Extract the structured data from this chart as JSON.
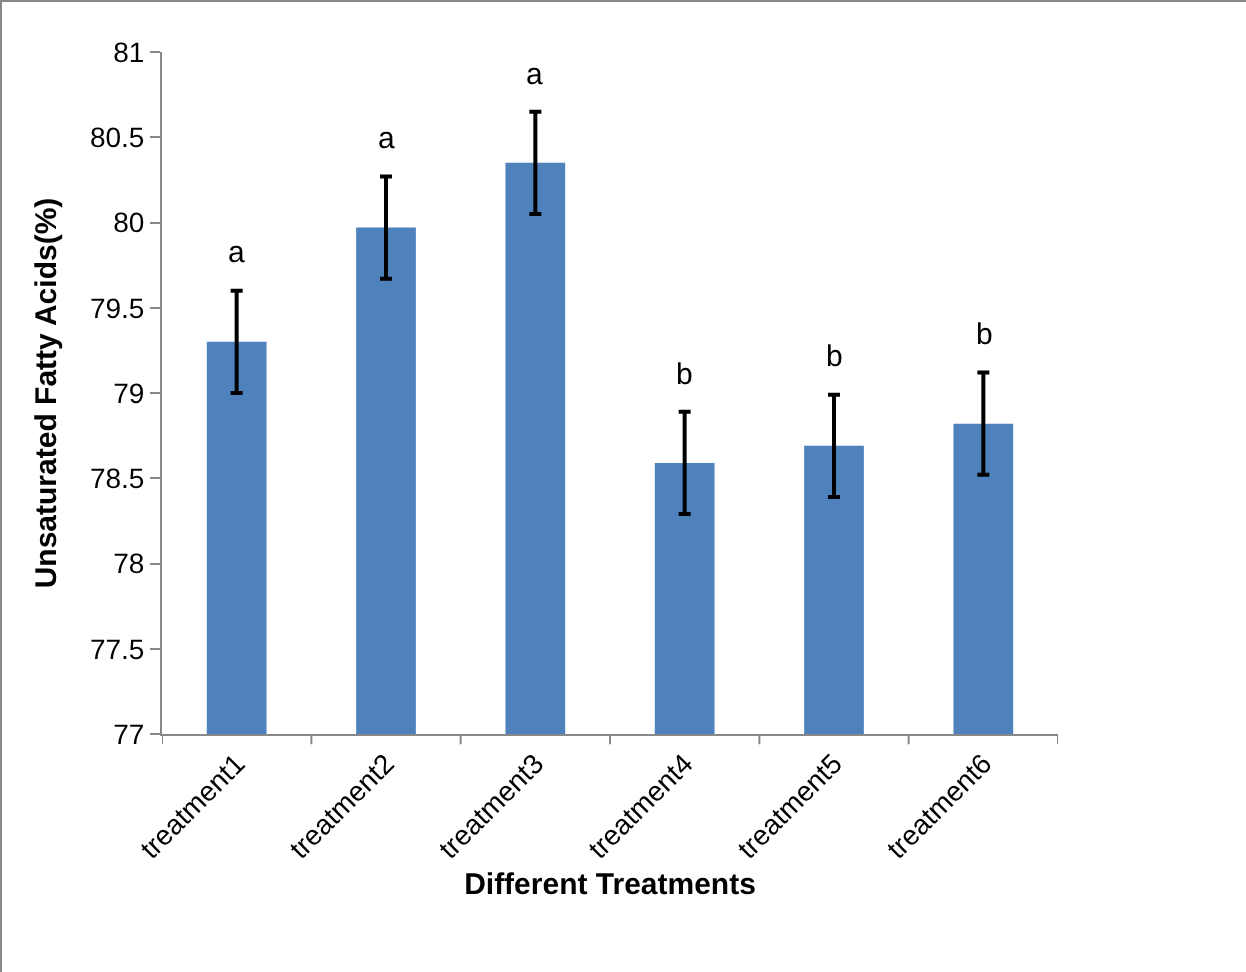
{
  "chart_data": {
    "type": "bar",
    "xlabel": "Different Treatments",
    "ylabel": "Unsaturated Fatty Acids(%)",
    "categories": [
      "treatment1",
      "treatment2",
      "treatment3",
      "treatment4",
      "treatment5",
      "treatment6"
    ],
    "values": [
      79.3,
      79.97,
      80.35,
      78.59,
      78.69,
      78.82
    ],
    "errors": [
      0.3,
      0.3,
      0.3,
      0.3,
      0.3,
      0.3
    ],
    "color": "#4f81bd",
    "ylim": [
      77,
      81
    ],
    "yticks": [
      77,
      77.5,
      78,
      78.5,
      79,
      79.5,
      80,
      80.5,
      81
    ],
    "grid": false,
    "annotations": [
      "a",
      "a",
      "a",
      "b",
      "b",
      "b"
    ]
  }
}
